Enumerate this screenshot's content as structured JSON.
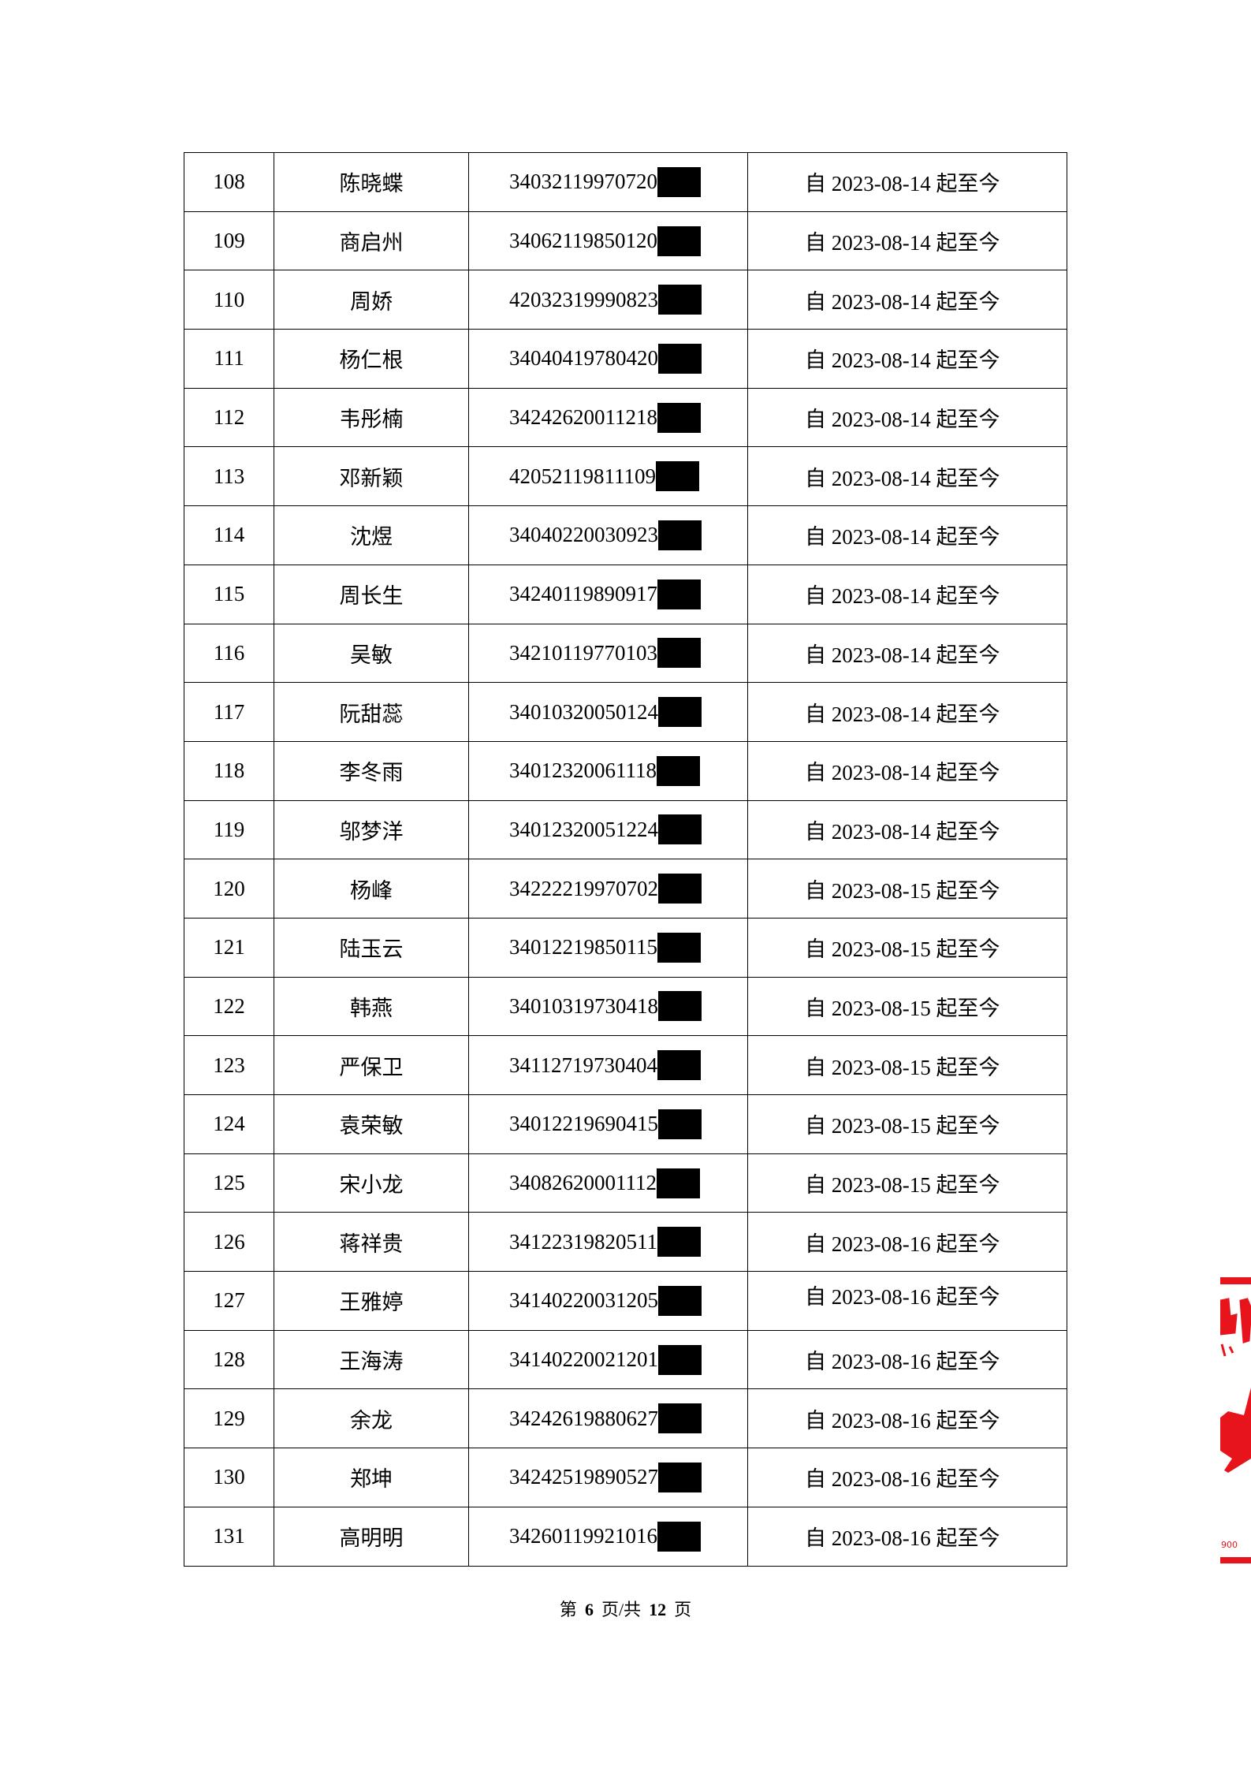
{
  "rows": [
    {
      "no": "108",
      "name": "陈晓蝶",
      "id": "34032119970720",
      "period": "自 2023-08-14 起至今"
    },
    {
      "no": "109",
      "name": "商启州",
      "id": "34062119850120",
      "period": "自 2023-08-14 起至今"
    },
    {
      "no": "110",
      "name": "周娇",
      "id": "42032319990823",
      "period": "自 2023-08-14 起至今"
    },
    {
      "no": "111",
      "name": "杨仁根",
      "id": "34040419780420",
      "period": "自 2023-08-14 起至今"
    },
    {
      "no": "112",
      "name": "韦彤楠",
      "id": "34242620011218",
      "period": "自 2023-08-14 起至今"
    },
    {
      "no": "113",
      "name": "邓新颖",
      "id": "42052119811109",
      "period": "自 2023-08-14 起至今"
    },
    {
      "no": "114",
      "name": "沈煜",
      "id": "34040220030923",
      "period": "自 2023-08-14 起至今"
    },
    {
      "no": "115",
      "name": "周长生",
      "id": "34240119890917",
      "period": "自 2023-08-14 起至今"
    },
    {
      "no": "116",
      "name": "吴敏",
      "id": "34210119770103",
      "period": "自 2023-08-14 起至今"
    },
    {
      "no": "117",
      "name": "阮甜蕊",
      "id": "34010320050124",
      "period": "自 2023-08-14 起至今"
    },
    {
      "no": "118",
      "name": "李冬雨",
      "id": "34012320061118",
      "period": "自 2023-08-14 起至今"
    },
    {
      "no": "119",
      "name": "邬梦洋",
      "id": "34012320051224",
      "period": "自 2023-08-14 起至今"
    },
    {
      "no": "120",
      "name": "杨峰",
      "id": "34222219970702",
      "period": "自 2023-08-15 起至今"
    },
    {
      "no": "121",
      "name": "陆玉云",
      "id": "34012219850115",
      "period": "自 2023-08-15 起至今"
    },
    {
      "no": "122",
      "name": "韩燕",
      "id": "34010319730418",
      "period": "自 2023-08-15 起至今"
    },
    {
      "no": "123",
      "name": "严保卫",
      "id": "34112719730404",
      "period": "自 2023-08-15 起至今"
    },
    {
      "no": "124",
      "name": "袁荣敏",
      "id": "34012219690415",
      "period": "自 2023-08-15 起至今"
    },
    {
      "no": "125",
      "name": "宋小龙",
      "id": "34082620001112",
      "period": "自 2023-08-15 起至今"
    },
    {
      "no": "126",
      "name": "蒋祥贵",
      "id": "34122319820511",
      "period": "自 2023-08-16 起至今"
    },
    {
      "no": "127",
      "name": "王雅婷",
      "id": "34140220031205",
      "period": "自 2023-08-16 起至今"
    },
    {
      "no": "128",
      "name": "王海涛",
      "id": "34140220021201",
      "period": "自 2023-08-16 起至今"
    },
    {
      "no": "129",
      "name": "余龙",
      "id": "34242619880627",
      "period": "自 2023-08-16 起至今"
    },
    {
      "no": "130",
      "name": "郑坤",
      "id": "34242519890527",
      "period": "自 2023-08-16 起至今"
    },
    {
      "no": "131",
      "name": "高明明",
      "id": "34260119921016",
      "period": "自 2023-08-16 起至今"
    }
  ],
  "footer": {
    "prefix": "第",
    "page": "6",
    "middle": "页/共",
    "total": "12",
    "suffix": "页"
  },
  "stamp": {
    "color": "#e8141c",
    "text": "900"
  }
}
